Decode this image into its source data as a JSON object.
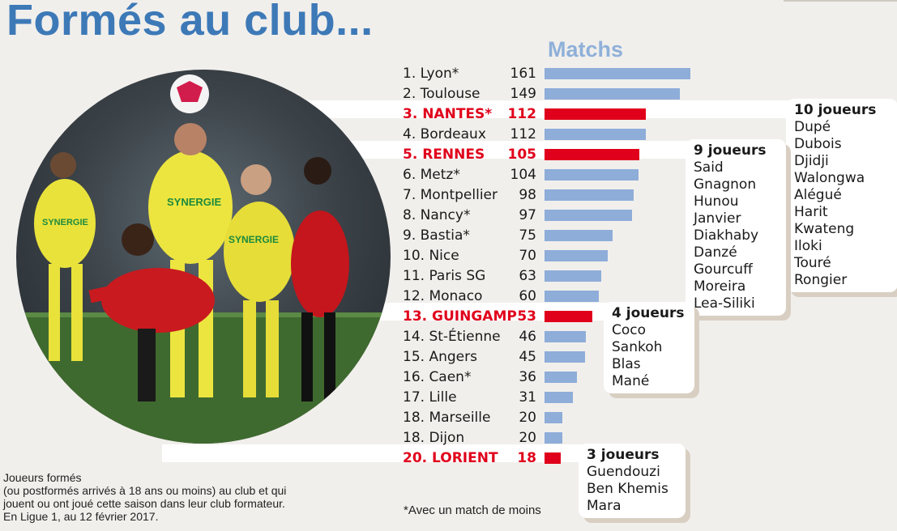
{
  "title": "Formés au club...",
  "column_label": "Matchs",
  "chart_data": {
    "type": "bar",
    "orientation": "horizontal",
    "title": "Formés au club...",
    "value_label": "Matchs",
    "categories": [
      "1. Lyon*",
      "2. Toulouse",
      "3. NANTES*",
      "4. Bordeaux",
      "5. RENNES",
      "6. Metz*",
      "7. Montpellier",
      "8. Nancy*",
      "9. Bastia*",
      "10. Nice",
      "11. Paris SG",
      "12. Monaco",
      "13. GUINGAMP",
      "14.  St-Étienne",
      "15. Angers",
      "16. Caen*",
      "17. Lille",
      "18. Marseille",
      "18. Dijon",
      "20. LORIENT"
    ],
    "values": [
      161,
      149,
      112,
      112,
      105,
      104,
      98,
      97,
      75,
      70,
      63,
      60,
      53,
      46,
      45,
      36,
      31,
      20,
      20,
      18
    ],
    "highlighted": [
      false,
      false,
      true,
      false,
      true,
      false,
      false,
      false,
      false,
      false,
      false,
      false,
      true,
      false,
      false,
      false,
      false,
      false,
      false,
      true
    ],
    "xlim": [
      0,
      180
    ],
    "colors": {
      "default": "#8eadd9",
      "highlight": "#e0001b"
    }
  },
  "callouts": [
    {
      "club": "NANTES",
      "head": "10 joueurs",
      "players": [
        "Dupé",
        "Dubois",
        "Djidji",
        "Walongwa",
        "Alégué",
        "Harit",
        "Kwateng",
        "Iloki",
        "Touré",
        "Rongier"
      ]
    },
    {
      "club": "RENNES",
      "head": "9 joueurs",
      "players": [
        "Said",
        "Gnagnon",
        "Hunou",
        "Janvier",
        "Diakhaby",
        "Danzé",
        "Gourcuff",
        "Moreira",
        "Lea-Siliki"
      ]
    },
    {
      "club": "GUINGAMP",
      "head": "4 joueurs",
      "players": [
        "Coco",
        "Sankoh",
        "Blas",
        "Mané"
      ]
    },
    {
      "club": "LORIENT",
      "head": "3 joueurs",
      "players": [
        "Guendouzi",
        "Ben Khemis",
        "Mara"
      ]
    }
  ],
  "footnote": [
    "Joueurs formés",
    "(ou postformés arrivés à 18 ans ou moins) au club et qui",
    "jouent ou ont joué cette saison dans leur club formateur.",
    "En Ligue 1, au 12 février 2017."
  ],
  "asterisk_note": "*Avec un match de moins",
  "photo_jersey_texts": [
    "SYNERGIE",
    "SYNERGIE",
    "SYNERGIE"
  ]
}
